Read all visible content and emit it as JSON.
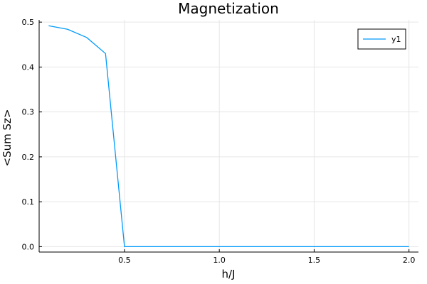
{
  "chart_data": {
    "type": "line",
    "title": "Magnetization",
    "xlabel": "h/J",
    "ylabel": "<Sum Sz>",
    "xlim": [
      0.05,
      2.05
    ],
    "ylim": [
      -0.012,
      0.505
    ],
    "xticks": [
      0.5,
      1.0,
      1.5,
      2.0
    ],
    "xtick_labels": [
      "0.5",
      "1.0",
      "1.5",
      "2.0"
    ],
    "yticks": [
      0.0,
      0.1,
      0.2,
      0.3,
      0.4,
      0.5
    ],
    "ytick_labels": [
      "0.0",
      "0.1",
      "0.2",
      "0.3",
      "0.4",
      "0.5"
    ],
    "grid": true,
    "legend": "top-right",
    "series": [
      {
        "name": "y1",
        "color": "#009AFA",
        "x": [
          0.1,
          0.2,
          0.3,
          0.4,
          0.5,
          0.6,
          0.7,
          0.8,
          0.9,
          1.0,
          1.1,
          1.2,
          1.3,
          1.4,
          1.5,
          1.6,
          1.7,
          1.8,
          1.9,
          2.0
        ],
        "y": [
          0.492,
          0.484,
          0.466,
          0.43,
          0.0,
          0.0,
          0.0,
          0.0,
          0.0,
          0.0,
          0.0,
          0.0,
          0.0,
          0.0,
          0.0,
          0.0,
          0.0,
          0.0,
          0.0,
          0.0
        ]
      }
    ]
  }
}
